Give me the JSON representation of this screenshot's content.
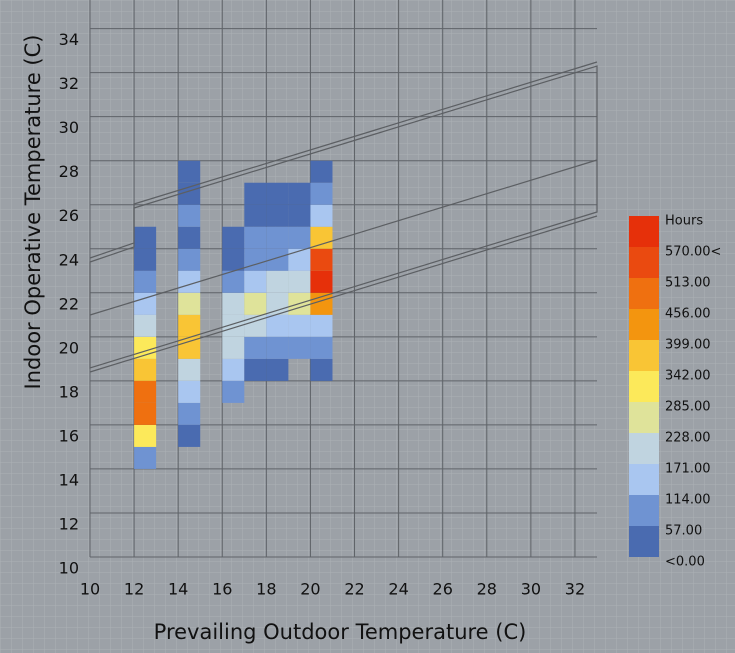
{
  "chart_data": {
    "type": "heatmap",
    "x_label": "Prevailing Outdoor Temperature (C)",
    "y_label": "Indoor Operative Temperature (C)",
    "xlim": [
      10,
      33
    ],
    "ylim": [
      10,
      35.3
    ],
    "xticks": [
      10,
      12,
      14,
      16,
      18,
      20,
      22,
      24,
      26,
      28,
      30,
      32
    ],
    "yticks": [
      10,
      12,
      14,
      16,
      18,
      20,
      22,
      24,
      26,
      28,
      30,
      32,
      34
    ],
    "grid": true,
    "x": [
      12,
      12,
      12,
      12,
      12,
      12,
      12,
      12,
      12,
      12,
      12,
      14,
      14,
      14,
      14,
      14,
      14,
      14,
      14,
      14,
      14,
      14,
      14,
      14,
      16,
      16,
      16,
      16,
      16,
      16,
      16,
      16,
      17,
      17,
      17,
      17,
      17,
      17,
      17,
      17,
      17,
      18,
      18,
      18,
      18,
      18,
      18,
      18,
      18,
      18,
      19,
      19,
      19,
      19,
      19,
      19,
      19,
      19,
      20,
      20,
      20,
      20,
      20,
      20,
      20,
      20,
      20,
      20
    ],
    "y": [
      14,
      15,
      16,
      17,
      18,
      19,
      20,
      21,
      22,
      23,
      24,
      15,
      16,
      17,
      18,
      19,
      20,
      21,
      22,
      23,
      24,
      25,
      26,
      27,
      17,
      18,
      19,
      20,
      21,
      22,
      23,
      24,
      18,
      19,
      20,
      21,
      22,
      23,
      24,
      25,
      26,
      18,
      19,
      20,
      21,
      22,
      23,
      24,
      25,
      26,
      19,
      20,
      21,
      22,
      23,
      24,
      25,
      26,
      18,
      19,
      20,
      21,
      22,
      23,
      24,
      25,
      26,
      27
    ],
    "values": [
      80,
      320,
      490,
      480,
      370,
      310,
      200,
      140,
      90,
      40,
      30,
      30,
      80,
      130,
      200,
      360,
      380,
      250,
      150,
      80,
      40,
      60,
      30,
      30,
      70,
      150,
      180,
      200,
      200,
      80,
      30,
      30,
      30,
      80,
      200,
      260,
      140,
      80,
      80,
      30,
      30,
      30,
      80,
      150,
      180,
      180,
      100,
      60,
      30,
      30,
      80,
      150,
      250,
      180,
      140,
      80,
      30,
      30,
      30,
      80,
      150,
      420,
      590,
      540,
      370,
      150,
      80,
      30
    ],
    "legend": {
      "title": "Hours",
      "edges": [
        {
          "value": 0,
          "label": "<0.00"
        },
        {
          "value": 57,
          "label": "57.00"
        },
        {
          "value": 114,
          "label": "114.00"
        },
        {
          "value": 171,
          "label": "171.00"
        },
        {
          "value": 228,
          "label": "228.00"
        },
        {
          "value": 285,
          "label": "285.00"
        },
        {
          "value": 342,
          "label": "342.00"
        },
        {
          "value": 399,
          "label": "399.00"
        },
        {
          "value": 456,
          "label": "456.00"
        },
        {
          "value": 513,
          "label": "513.00"
        },
        {
          "value": 570,
          "label": "570.00<"
        }
      ],
      "colors": [
        "#4a6bb0",
        "#6f93d2",
        "#a9c6f0",
        "#c0d4e0",
        "#dfe39a",
        "#fce95a",
        "#f9c535",
        "#f3950f",
        "#ef7010",
        "#ea4a10",
        "#e6300a"
      ]
    }
  }
}
